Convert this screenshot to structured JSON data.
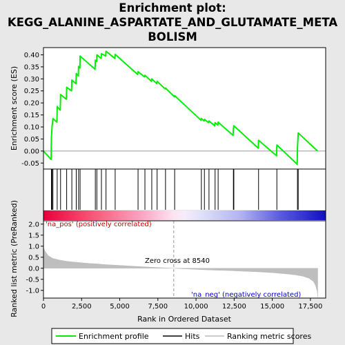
{
  "title_line1": "Enrichment plot:",
  "title_line2": "KEGG_ALANINE_ASPARTATE_AND_GLUTAMATE_META",
  "title_line3": "BOLISM",
  "colors": {
    "enrichment_line": "#00ee00",
    "hit": "#000000",
    "metric_fill": "#bebebe",
    "pos_label": "#cc0000",
    "neg_label": "#0000cc",
    "zero_cross": "#999999"
  },
  "chart_data": [
    {
      "type": "line",
      "name": "enrichment-profile",
      "ylabel": "Enrichment score (ES)",
      "xlim": [
        0,
        18500
      ],
      "ylim": [
        -0.075,
        0.43
      ],
      "yticks": [
        -0.05,
        0.0,
        0.05,
        0.1,
        0.15,
        0.2,
        0.25,
        0.3,
        0.35,
        0.4
      ],
      "ytick_labels": [
        "-0.05",
        "0.00",
        "0.05",
        "0.10",
        "0.15",
        "0.20",
        "0.25",
        "0.30",
        "0.35",
        "0.40"
      ],
      "grid": false,
      "hits": [
        520,
        560,
        620,
        900,
        1120,
        1520,
        1860,
        2150,
        2300,
        2400,
        3400,
        3500,
        3800,
        4100,
        4700,
        6200,
        6650,
        7100,
        7450,
        8000,
        8600,
        10350,
        10550,
        10850,
        11250,
        11450,
        12450,
        12480,
        14100,
        15300,
        16650,
        16700
      ],
      "es_points": [
        [
          0,
          0.0
        ],
        [
          500,
          -0.035
        ],
        [
          520,
          0.055
        ],
        [
          560,
          0.1
        ],
        [
          620,
          0.135
        ],
        [
          880,
          0.12
        ],
        [
          900,
          0.185
        ],
        [
          1100,
          0.17
        ],
        [
          1120,
          0.235
        ],
        [
          1500,
          0.215
        ],
        [
          1520,
          0.265
        ],
        [
          1840,
          0.25
        ],
        [
          1860,
          0.295
        ],
        [
          2130,
          0.28
        ],
        [
          2150,
          0.322
        ],
        [
          2290,
          0.312
        ],
        [
          2300,
          0.352
        ],
        [
          2390,
          0.345
        ],
        [
          2400,
          0.395
        ],
        [
          3380,
          0.34
        ],
        [
          3400,
          0.378
        ],
        [
          3490,
          0.372
        ],
        [
          3500,
          0.4
        ],
        [
          3780,
          0.385
        ],
        [
          3800,
          0.405
        ],
        [
          4080,
          0.395
        ],
        [
          4100,
          0.415
        ],
        [
          4680,
          0.385
        ],
        [
          4700,
          0.402
        ],
        [
          6180,
          0.318
        ],
        [
          6200,
          0.33
        ],
        [
          6630,
          0.308
        ],
        [
          6650,
          0.315
        ],
        [
          7080,
          0.29
        ],
        [
          7100,
          0.3
        ],
        [
          7430,
          0.28
        ],
        [
          7450,
          0.29
        ],
        [
          7980,
          0.258
        ],
        [
          8000,
          0.262
        ],
        [
          8580,
          0.226
        ],
        [
          8600,
          0.23
        ],
        [
          10330,
          0.128
        ],
        [
          10350,
          0.135
        ],
        [
          10530,
          0.125
        ],
        [
          10550,
          0.132
        ],
        [
          10830,
          0.118
        ],
        [
          10850,
          0.125
        ],
        [
          11230,
          0.105
        ],
        [
          11250,
          0.118
        ],
        [
          11430,
          0.108
        ],
        [
          11450,
          0.12
        ],
        [
          12430,
          0.065
        ],
        [
          12450,
          0.09
        ],
        [
          12480,
          0.105
        ],
        [
          14080,
          0.012
        ],
        [
          14100,
          0.045
        ],
        [
          15280,
          -0.02
        ],
        [
          15300,
          0.025
        ],
        [
          16630,
          -0.055
        ],
        [
          16650,
          0.01
        ],
        [
          16700,
          0.075
        ],
        [
          17970,
          0.0
        ]
      ]
    },
    {
      "type": "area",
      "name": "ranked-list-metric",
      "xlabel": "Rank in Ordered Dataset",
      "ylabel": "Ranked list metric (PreRanked)",
      "xlim": [
        0,
        18500
      ],
      "ylim": [
        -1.35,
        2.15
      ],
      "xticks": [
        0,
        2500,
        5000,
        7500,
        10000,
        12500,
        15000,
        17500
      ],
      "xtick_labels": [
        "0",
        "2,500",
        "5,000",
        "7,500",
        "10,000",
        "12,500",
        "15,000",
        "17,500"
      ],
      "yticks": [
        -1.0,
        -0.5,
        0.0,
        0.5,
        1.0,
        1.5,
        2.0
      ],
      "ytick_labels": [
        "-1.0",
        "-0.5",
        "0.0",
        "0.5",
        "1.0",
        "1.5",
        "2.0"
      ],
      "grid": false,
      "points": [
        [
          0,
          0.95
        ],
        [
          100,
          0.78
        ],
        [
          300,
          0.58
        ],
        [
          600,
          0.45
        ],
        [
          1000,
          0.38
        ],
        [
          1500,
          0.32
        ],
        [
          2000,
          0.28
        ],
        [
          2500,
          0.25
        ],
        [
          3000,
          0.22
        ],
        [
          3500,
          0.2
        ],
        [
          4000,
          0.17
        ],
        [
          5000,
          0.13
        ],
        [
          6000,
          0.09
        ],
        [
          7000,
          0.05
        ],
        [
          8000,
          0.015
        ],
        [
          8540,
          0.0
        ],
        [
          9000,
          -0.02
        ],
        [
          10000,
          -0.05
        ],
        [
          11000,
          -0.08
        ],
        [
          12000,
          -0.1
        ],
        [
          13000,
          -0.13
        ],
        [
          14000,
          -0.16
        ],
        [
          15000,
          -0.2
        ],
        [
          16000,
          -0.26
        ],
        [
          16500,
          -0.3
        ],
        [
          17000,
          -0.36
        ],
        [
          17400,
          -0.45
        ],
        [
          17700,
          -0.6
        ],
        [
          17850,
          -0.8
        ],
        [
          17950,
          -1.05
        ],
        [
          17980,
          -1.3
        ]
      ],
      "zero_cross_rank": 8540,
      "zero_cross_label": "Zero cross at 8540",
      "pos_label": "'na_pos' (positively correlated)",
      "neg_label": "'na_neg' (negatively correlated)"
    }
  ],
  "legend": {
    "items": [
      {
        "label": "Enrichment profile",
        "style": "green-line"
      },
      {
        "label": "Hits",
        "style": "black-line"
      },
      {
        "label": "Ranking metric scores",
        "style": "gray-line"
      }
    ]
  }
}
